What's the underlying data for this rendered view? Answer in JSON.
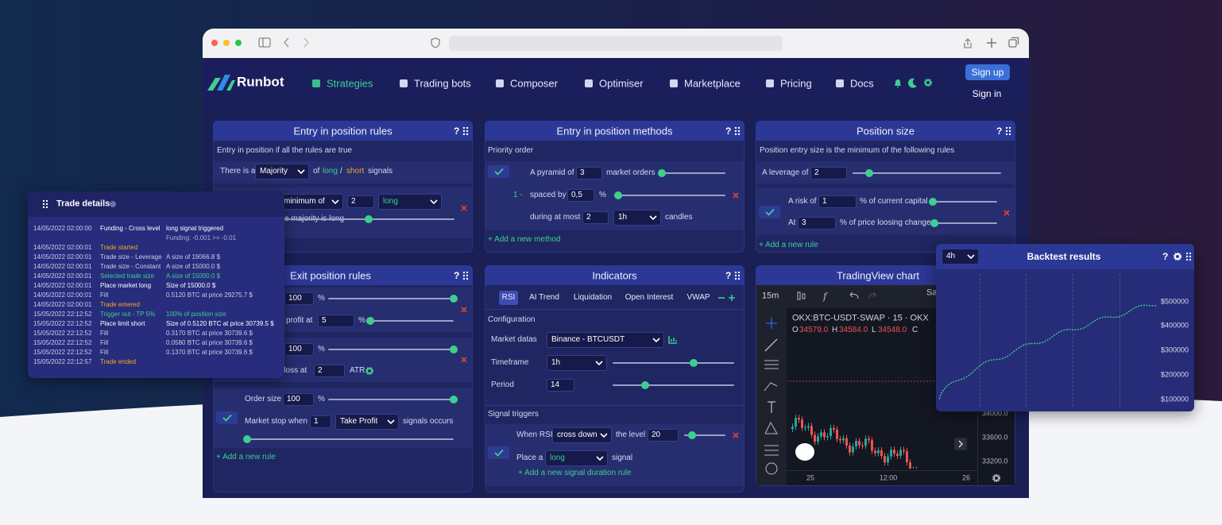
{
  "nav": {
    "brand": "Runbot",
    "items": [
      "Strategies",
      "Trading bots",
      "Composer",
      "Optimiser",
      "Marketplace",
      "Pricing",
      "Docs"
    ],
    "sign_up": "Sign up",
    "sign_in": "Sign in"
  },
  "panels": [
    {
      "title": "Entry in position rules",
      "help": "?",
      "subtitle": "Entry in position if all the rules are true",
      "items": [
        "There is a",
        "Majority",
        "of",
        "long",
        "/",
        "short",
        "signals",
        "minimum of",
        "2",
        "long",
        "e majority is long"
      ]
    },
    {
      "title": "Entry in position methods",
      "help": "?",
      "subtitle": "Priority order",
      "items": [
        "A pyramid of",
        "3",
        "market orders",
        "1 -",
        "spaced by",
        "0,5",
        "%",
        "during at most",
        "2",
        "1h",
        "candles"
      ],
      "add": "+ Add a new method"
    },
    {
      "title": "Position size",
      "help": "?",
      "subtitle": "Position entry size is the minimum of the following rules",
      "items": [
        "A leverage of",
        "2",
        "A risk of",
        "1",
        "% of current capital",
        "At",
        "3",
        "% of price loosing change"
      ],
      "add": "+ Add a new rule"
    },
    {
      "title": "Exit position rules",
      "help": "?",
      "items": [
        "100",
        "%",
        "profit at",
        "5",
        "%",
        "100",
        "%",
        "p loss at",
        "2",
        "ATR",
        "Order size",
        "100",
        "%",
        "Market stop",
        "when",
        "1",
        "Take Profit",
        "signals occurs"
      ],
      "add": "+ Add a new rule"
    },
    {
      "title": "Indicators",
      "help": "?",
      "tabs": [
        "RSI",
        "AI Trend",
        "Liquidation",
        "Open Interest",
        "VWAP"
      ],
      "items": [
        "Configuration",
        "Market datas",
        "Binance - BTCUSDT",
        "Timeframe",
        "1h",
        "Period",
        "14",
        "Signal triggers",
        "When RSI",
        "cross down",
        "the level",
        "20",
        "Place a",
        "long",
        "signal"
      ],
      "add": "+ Add a new signal duration rule"
    },
    {
      "title": "TradingView chart",
      "items": [
        "15m",
        "Sa",
        "OKX:BTC-USDT-SWAP · 15 · OKX",
        "O",
        "34579.0",
        "H",
        "34584.0",
        "L",
        "34548.0",
        "C"
      ],
      "price_labels": [
        "34000.0",
        "33600.0",
        "33200.0"
      ],
      "time_labels": [
        "25",
        "12:00",
        "26"
      ]
    }
  ],
  "trade_details": {
    "title": "Trade details",
    "rows": [
      {
        "time": "14/05/2022 02:00:00",
        "event": "Funding - Cross level",
        "detail": "long signal triggered",
        "note": "Funding: -0.001 >= -0.01",
        "color": "#ffffff"
      },
      {
        "time": "14/05/2022 02:00:01",
        "event": "Trade started",
        "color": "#f5a623"
      },
      {
        "time": "14/05/2022 02:00:01",
        "event": "Trade size - Leverage",
        "detail": "A size of 19066.8 $",
        "color": "#c8cde8"
      },
      {
        "time": "14/05/2022 02:00:01",
        "event": "Trade size - Constant",
        "detail": "A size of 15000.0 $",
        "color": "#c8cde8"
      },
      {
        "time": "14/05/2022 02:00:01",
        "event": "Selected trade size",
        "detail": "A size of 15000.0 $",
        "color": "#3ecf8e"
      },
      {
        "time": "14/05/2022 02:00:01",
        "event": "Place market long",
        "detail": "Size of 15000.0 $",
        "color": "#ffffff"
      },
      {
        "time": "14/05/2022 02:00:01",
        "event": "Fill",
        "detail": "0.5120 BTC at price 29275.7 $",
        "color": "#c8cde8"
      },
      {
        "time": "14/05/2022 02:00:01",
        "event": "Trade entered",
        "color": "#f5a623"
      },
      {
        "time": "15/05/2022 22:12:52",
        "event": "Trigger out - TP 5%",
        "detail": "100% of position size",
        "color": "#3ecf8e"
      },
      {
        "time": "15/05/2022 22:12:52",
        "event": "Place limit short",
        "detail": "Size of 0.5120 BTC at price 30739.5 $",
        "color": "#ffffff"
      },
      {
        "time": "15/05/2022 22:12:52",
        "event": "Fill",
        "detail": "0.3170 BTC at price 30739.6 $",
        "color": "#c8cde8"
      },
      {
        "time": "15/05/2022 22:12:52",
        "event": "Fill",
        "detail": "0.0580 BTC at price 30739.6 $",
        "color": "#c8cde8"
      },
      {
        "time": "15/05/2022 22:12:52",
        "event": "Fill",
        "detail": "0.1370 BTC at price 30739.6 $",
        "color": "#c8cde8"
      },
      {
        "time": "15/05/2022 22:12:57",
        "event": "Trade ended",
        "color": "#f5a623"
      }
    ]
  },
  "backtest": {
    "title": "Backtest results",
    "timeframe": "4h",
    "help": "?",
    "y_labels": [
      "$500000",
      "$400000",
      "$300000",
      "$200000",
      "$100000"
    ]
  }
}
